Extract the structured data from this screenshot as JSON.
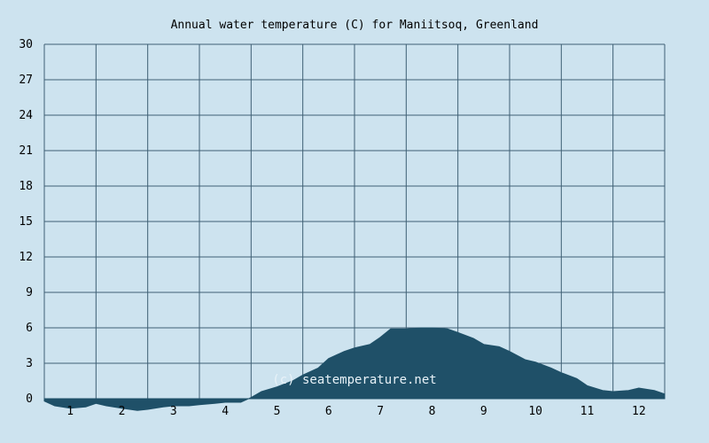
{
  "chart_data": {
    "type": "area",
    "title": "Annual water temperature (C) for Maniitsoq, Greenland",
    "xlabel": "",
    "ylabel": "",
    "ylim": [
      0,
      30
    ],
    "xlim": [
      0.5,
      12.5
    ],
    "yticks": [
      "0",
      "3",
      "6",
      "9",
      "12",
      "15",
      "18",
      "21",
      "24",
      "27",
      "30"
    ],
    "xticks": [
      "1",
      "2",
      "3",
      "4",
      "5",
      "6",
      "7",
      "8",
      "9",
      "10",
      "11",
      "12"
    ],
    "grid": true,
    "x": [
      0.5,
      0.7,
      1.0,
      1.3,
      1.5,
      1.7,
      2.0,
      2.3,
      2.5,
      2.8,
      3.0,
      3.3,
      3.5,
      3.8,
      4.0,
      4.3,
      4.5,
      4.7,
      5.0,
      5.3,
      5.5,
      5.8,
      6.0,
      6.3,
      6.5,
      6.8,
      7.0,
      7.2,
      7.5,
      7.8,
      8.0,
      8.3,
      8.5,
      8.8,
      9.0,
      9.3,
      9.5,
      9.8,
      10.0,
      10.3,
      10.5,
      10.8,
      11.0,
      11.3,
      11.5,
      11.8,
      12.0,
      12.3,
      12.5
    ],
    "series": [
      {
        "values": [
          -0.2,
          -0.6,
          -0.8,
          -0.7,
          -0.4,
          -0.6,
          -0.8,
          -1.0,
          -0.9,
          -0.7,
          -0.6,
          -0.6,
          -0.5,
          -0.4,
          -0.3,
          -0.3,
          0.1,
          0.6,
          1.0,
          1.5,
          2.0,
          2.6,
          3.4,
          4.0,
          4.3,
          4.6,
          5.2,
          5.9,
          5.9,
          6.0,
          6.0,
          5.9,
          5.6,
          5.1,
          4.6,
          4.4,
          4.0,
          3.3,
          3.1,
          2.6,
          2.2,
          1.7,
          1.1,
          0.7,
          0.6,
          0.7,
          0.9,
          0.7,
          0.4
        ]
      }
    ],
    "colors": {
      "background": "#cde3ef",
      "fill": "#1f5068",
      "grid": "#3e5f74"
    },
    "watermark": "(c) seatemperature.net"
  }
}
